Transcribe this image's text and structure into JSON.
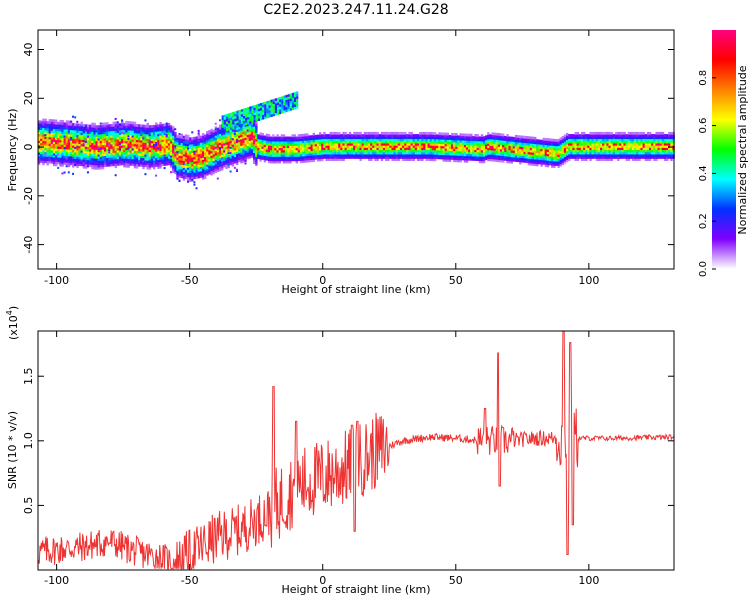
{
  "title": "C2E2.2023.247.11.24.G28",
  "chart_data": [
    {
      "type": "heatmap",
      "xlabel": "Height of straight line (km)",
      "ylabel": "Frequency (Hz)",
      "xlim": [
        -107,
        132
      ],
      "ylim": [
        -50,
        48
      ],
      "xticks": [
        -100,
        -50,
        0,
        50,
        100
      ],
      "yticks": [
        -40,
        -20,
        0,
        20,
        40
      ],
      "colorbar": {
        "label": "Normalized spectral amplitude",
        "range": [
          0,
          1
        ],
        "ticks": [
          "0.0",
          "0.2",
          "0.4",
          "0.6",
          "0.8"
        ],
        "stops": [
          "#ffffff",
          "#8000ff",
          "#0030ff",
          "#00ffff",
          "#00ff00",
          "#ffff00",
          "#ff8000",
          "#ff0000",
          "#ff0080"
        ]
      },
      "ridge": [
        {
          "x": -107,
          "y": 2
        },
        {
          "x": -95,
          "y": 1
        },
        {
          "x": -85,
          "y": 0
        },
        {
          "x": -75,
          "y": 1
        },
        {
          "x": -65,
          "y": 0
        },
        {
          "x": -58,
          "y": 1
        },
        {
          "x": -55,
          "y": -4
        },
        {
          "x": -50,
          "y": -5
        },
        {
          "x": -45,
          "y": -4
        },
        {
          "x": -40,
          "y": -1
        },
        {
          "x": -35,
          "y": 1
        },
        {
          "x": -30,
          "y": 3
        },
        {
          "x": -27,
          "y": 4
        },
        {
          "x": -25,
          "y": 0
        },
        {
          "x": -20,
          "y": -1
        },
        {
          "x": -10,
          "y": -1
        },
        {
          "x": 0,
          "y": 0
        },
        {
          "x": 20,
          "y": 0
        },
        {
          "x": 40,
          "y": 0
        },
        {
          "x": 60,
          "y": -1
        },
        {
          "x": 62,
          "y": 0
        },
        {
          "x": 70,
          "y": -1
        },
        {
          "x": 88,
          "y": -3
        },
        {
          "x": 92,
          "y": 0
        },
        {
          "x": 100,
          "y": 0
        },
        {
          "x": 132,
          "y": 0
        }
      ]
    },
    {
      "type": "line",
      "xlabel": "Height of straight line (km)",
      "ylabel": "SNR (10 * v/v)",
      "yscale_label": "(x10",
      "yscale_exponent": "4",
      "xlim": [
        -107,
        132
      ],
      "ylim": [
        0,
        1.85
      ],
      "xticks": [
        -100,
        -50,
        0,
        50,
        100
      ],
      "yticks": [
        "0.5",
        "1.0",
        "1.5"
      ],
      "color": "#ee3333",
      "trend": [
        {
          "x": -107,
          "y": 0.14
        },
        {
          "x": -90,
          "y": 0.18
        },
        {
          "x": -80,
          "y": 0.22
        },
        {
          "x": -70,
          "y": 0.14
        },
        {
          "x": -60,
          "y": 0.09
        },
        {
          "x": -55,
          "y": 0.05
        },
        {
          "x": -50,
          "y": 0.12
        },
        {
          "x": -40,
          "y": 0.25
        },
        {
          "x": -30,
          "y": 0.32
        },
        {
          "x": -20,
          "y": 0.45
        },
        {
          "x": -10,
          "y": 0.65
        },
        {
          "x": 0,
          "y": 0.72
        },
        {
          "x": 10,
          "y": 0.8
        },
        {
          "x": 20,
          "y": 0.92
        },
        {
          "x": 30,
          "y": 1.0
        },
        {
          "x": 40,
          "y": 1.03
        },
        {
          "x": 50,
          "y": 1.02
        },
        {
          "x": 60,
          "y": 1.0
        },
        {
          "x": 70,
          "y": 1.0
        },
        {
          "x": 80,
          "y": 1.02
        },
        {
          "x": 90,
          "y": 1.02
        },
        {
          "x": 100,
          "y": 1.02
        },
        {
          "x": 110,
          "y": 1.02
        },
        {
          "x": 132,
          "y": 1.03
        }
      ],
      "peaks": [
        {
          "x": -18.5,
          "y": 1.42
        },
        {
          "x": -10,
          "y": 1.15
        },
        {
          "x": 11,
          "y": 1.12
        },
        {
          "x": 13,
          "y": 1.15
        },
        {
          "x": 61,
          "y": 1.25
        },
        {
          "x": 66,
          "y": 1.68
        },
        {
          "x": 90.5,
          "y": 1.85
        },
        {
          "x": 93,
          "y": 1.76
        },
        {
          "x": 92,
          "y": 0.12
        },
        {
          "x": 94,
          "y": 0.35
        },
        {
          "x": 66.5,
          "y": 0.65
        },
        {
          "x": 12,
          "y": 0.3
        }
      ]
    }
  ]
}
